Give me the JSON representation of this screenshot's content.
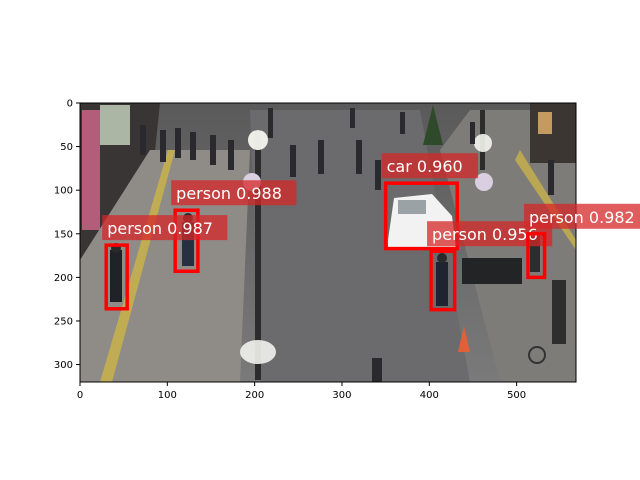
{
  "chart_data": {
    "type": "image-detections",
    "xlim": [
      0,
      568
    ],
    "ylim": [
      320,
      0
    ],
    "xticks": [
      0,
      100,
      200,
      300,
      400,
      500
    ],
    "yticks": [
      0,
      50,
      100,
      150,
      200,
      250,
      300
    ],
    "box_color": "#ff0000",
    "label_bg_color": "#d62728",
    "detections": [
      {
        "label": "person 0.988",
        "x1": 109,
        "y1": 123,
        "x2": 135,
        "y2": 193
      },
      {
        "label": "person 0.987",
        "x1": 30,
        "y1": 163,
        "x2": 54,
        "y2": 236
      },
      {
        "label": "car 0.960",
        "x1": 350,
        "y1": 92,
        "x2": 432,
        "y2": 167
      },
      {
        "label": "person 0.956",
        "x1": 402,
        "y1": 170,
        "x2": 429,
        "y2": 237
      },
      {
        "label": "person 0.982",
        "x1": 513,
        "y1": 150,
        "x2": 532,
        "y2": 200
      }
    ]
  }
}
